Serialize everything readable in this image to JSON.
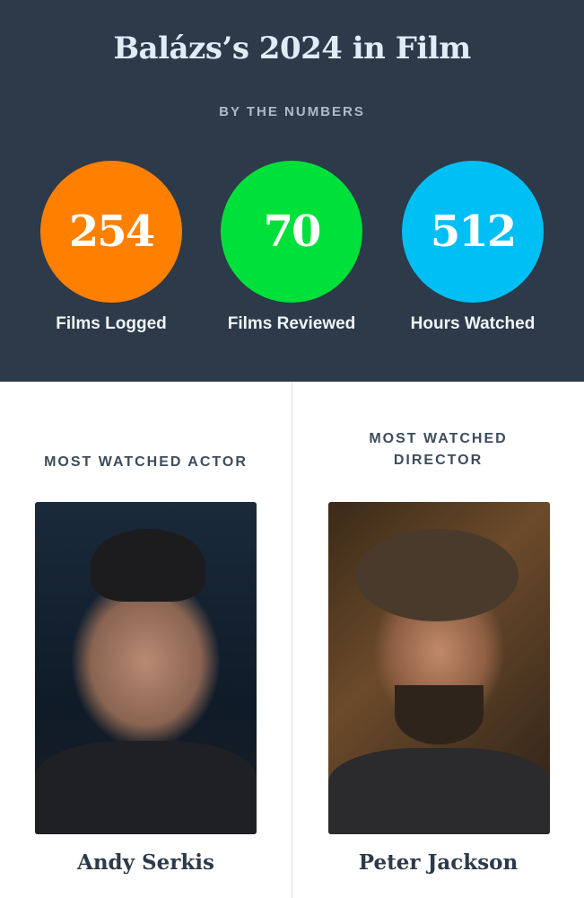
{
  "header": {
    "title": "Balázs’s 2024 in Film",
    "subtitle": "BY THE NUMBERS"
  },
  "stats": [
    {
      "value": "254",
      "label": "Films Logged",
      "color": "#ff8000"
    },
    {
      "value": "70",
      "label": "Films Reviewed",
      "color": "#00e054"
    },
    {
      "value": "512",
      "label": "Hours Watched",
      "color": "#40bcf4"
    }
  ],
  "actor": {
    "heading": "MOST WATCHED ACTOR",
    "name": "Andy Serkis"
  },
  "director": {
    "heading_line1": "MOST WATCHED",
    "heading_line2": "DIRECTOR",
    "name": "Peter Jackson"
  }
}
